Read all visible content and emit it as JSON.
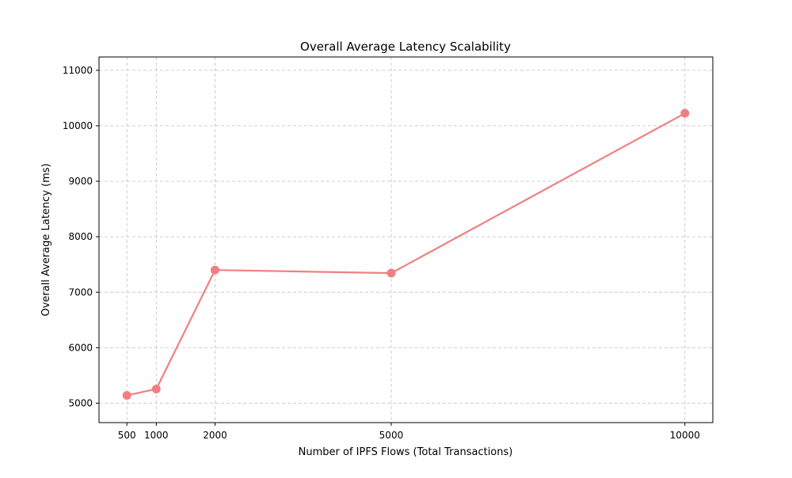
{
  "chart_data": {
    "type": "line",
    "title": "Overall Average Latency Scalability",
    "xlabel": "Number of IPFS Flows (Total Transactions)",
    "ylabel": "Overall Average Latency (ms)",
    "x": [
      500,
      1000,
      2000,
      5000,
      10000
    ],
    "x_ticks": [
      500,
      1000,
      2000,
      5000,
      10000
    ],
    "y_ticks": [
      5000,
      6000,
      7000,
      8000,
      9000,
      10000,
      11000
    ],
    "xlim": [
      25,
      10475
    ],
    "ylim": [
      4650,
      11240
    ],
    "grid": true,
    "grid_style": "dashed",
    "series": [
      {
        "values": [
          5140,
          5255,
          7400,
          7345,
          10225
        ],
        "color": "#f08080",
        "marker": "circle"
      }
    ]
  }
}
